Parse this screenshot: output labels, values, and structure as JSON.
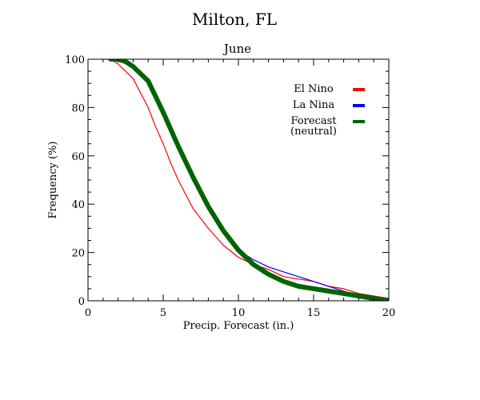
{
  "chart_data": {
    "type": "line",
    "title": "Milton, FL",
    "subtitle": "June",
    "xlabel": "Precip. Forecast (in.)",
    "ylabel": "Frequency (%)",
    "xlim": [
      0,
      20
    ],
    "ylim": [
      0,
      100
    ],
    "xticks": [
      0,
      5,
      10,
      15,
      20
    ],
    "yticks": [
      0,
      20,
      40,
      60,
      80,
      100
    ],
    "grid": false,
    "legend_position": "top-right",
    "series": [
      {
        "name": "El Nino",
        "color": "#ff0000",
        "x": [
          1,
          1.5,
          2,
          2.5,
          3,
          3.5,
          4,
          4.5,
          5,
          5.5,
          6,
          6.5,
          7,
          7.5,
          8,
          9,
          10,
          11,
          12,
          13,
          14,
          15,
          16,
          17,
          18,
          19,
          20
        ],
        "y": [
          100,
          100,
          98,
          95,
          92,
          86,
          80,
          72,
          65,
          57,
          50,
          44,
          38,
          34,
          30,
          23,
          18,
          15,
          13,
          10,
          9,
          8,
          6,
          5,
          3,
          2,
          1
        ]
      },
      {
        "name": "La Nina",
        "color": "#0000ff",
        "x": [
          1.5,
          2,
          2.5,
          3,
          4,
          5,
          6,
          7,
          8,
          9,
          10,
          11,
          12,
          13,
          14,
          15,
          16,
          17,
          18,
          19,
          20
        ],
        "y": [
          100,
          100,
          99,
          97,
          91,
          78,
          64,
          51,
          39,
          29,
          21,
          17,
          14,
          12,
          10,
          8,
          6,
          4,
          2,
          1,
          1
        ]
      },
      {
        "name": "Forecast (neutral)",
        "legend_lines": [
          "Forecast",
          "(neutral)"
        ],
        "color": "#006400",
        "x": [
          1.5,
          2,
          2.5,
          3,
          4,
          5,
          6,
          7,
          8,
          9,
          10,
          11,
          12,
          13,
          14,
          15,
          16,
          17,
          18,
          19,
          20
        ],
        "y": [
          100,
          100,
          99,
          97,
          91,
          78,
          64,
          51,
          39,
          29,
          21,
          15,
          11,
          8,
          6,
          5,
          4,
          3,
          2,
          1,
          0
        ]
      }
    ]
  }
}
